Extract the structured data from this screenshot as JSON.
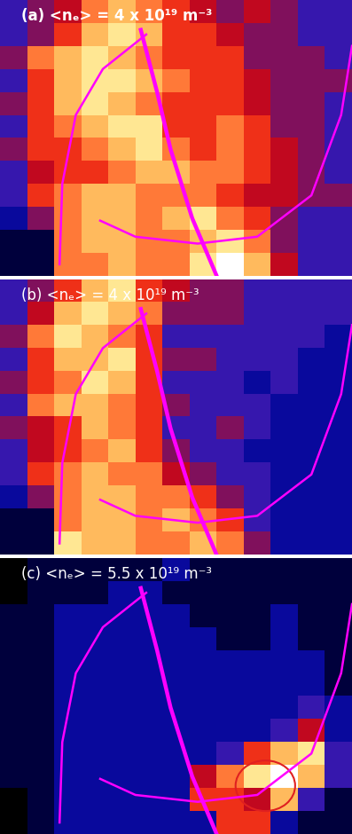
{
  "chart_data": [
    {
      "type": "heatmap",
      "title": "(a) <nₑ> = 4 x 10¹⁹ m⁻³",
      "tick_labels": false,
      "color_range": [
        0,
        10
      ],
      "cells": [
        [
          3,
          4,
          5,
          7,
          8,
          7,
          6,
          5,
          4,
          5,
          4,
          3,
          3
        ],
        [
          3,
          4,
          6,
          8,
          9,
          8,
          6,
          6,
          5,
          4,
          4,
          3,
          3
        ],
        [
          4,
          7,
          8,
          9,
          8,
          7,
          6,
          6,
          6,
          4,
          4,
          4,
          3
        ],
        [
          3,
          6,
          8,
          9,
          9,
          8,
          7,
          6,
          6,
          5,
          4,
          4,
          4
        ],
        [
          4,
          6,
          8,
          9,
          8,
          7,
          6,
          6,
          6,
          5,
          4,
          4,
          3
        ],
        [
          3,
          6,
          7,
          8,
          9,
          9,
          6,
          6,
          7,
          6,
          4,
          4,
          3
        ],
        [
          4,
          6,
          6,
          7,
          8,
          9,
          7,
          6,
          7,
          6,
          5,
          4,
          3
        ],
        [
          3,
          5,
          6,
          6,
          7,
          8,
          8,
          7,
          7,
          6,
          5,
          4,
          3
        ],
        [
          3,
          6,
          7,
          8,
          8,
          7,
          7,
          7,
          6,
          5,
          5,
          4,
          4
        ],
        [
          2,
          4,
          7,
          8,
          8,
          7,
          8,
          9,
          7,
          6,
          4,
          3,
          3
        ],
        [
          1,
          1,
          7,
          8,
          8,
          7,
          7,
          8,
          9,
          7,
          4,
          3,
          3
        ],
        [
          1,
          1,
          7,
          7,
          8,
          7,
          7,
          9,
          10,
          8,
          5,
          3,
          3
        ]
      ],
      "curves": [
        {
          "color": "#ff00ff",
          "x": [
            5.2,
            5.8,
            6.3,
            7.1,
            8.0
          ],
          "y": [
            1.3,
            4,
            6.5,
            9.5,
            12
          ]
        },
        {
          "color": "#ff00ff",
          "x": [
            5.4,
            3.8,
            2.8,
            2.3,
            2.2
          ],
          "y": [
            1.5,
            3,
            5,
            8,
            11.5
          ]
        },
        {
          "color": "#ff00ff",
          "x": [
            3.7,
            5,
            7.3,
            9.5,
            11.5,
            12.6,
            13
          ],
          "y": [
            9.6,
            10.3,
            10.6,
            10.3,
            8.5,
            5,
            2
          ]
        }
      ]
    },
    {
      "type": "heatmap",
      "title": "(b) <nₑ> = 4 x 10¹⁹ m⁻³",
      "tick_labels": false,
      "color_range": [
        0,
        10
      ],
      "cells": [
        [
          3,
          4,
          6,
          8,
          9,
          6,
          5,
          4,
          4,
          3,
          3,
          3,
          3
        ],
        [
          3,
          5,
          8,
          9,
          8,
          7,
          4,
          4,
          4,
          3,
          3,
          3,
          3
        ],
        [
          4,
          7,
          9,
          8,
          7,
          6,
          3,
          3,
          3,
          3,
          3,
          3,
          2
        ],
        [
          3,
          6,
          8,
          8,
          9,
          6,
          4,
          4,
          3,
          3,
          3,
          2,
          2
        ],
        [
          4,
          6,
          7,
          9,
          8,
          6,
          3,
          3,
          3,
          2,
          3,
          2,
          2
        ],
        [
          3,
          7,
          8,
          8,
          7,
          6,
          4,
          3,
          3,
          3,
          2,
          2,
          2
        ],
        [
          4,
          5,
          6,
          8,
          7,
          6,
          3,
          3,
          4,
          3,
          2,
          2,
          2
        ],
        [
          3,
          5,
          6,
          7,
          8,
          6,
          4,
          3,
          3,
          2,
          2,
          2,
          2
        ],
        [
          3,
          6,
          7,
          8,
          7,
          7,
          5,
          4,
          3,
          3,
          2,
          2,
          2
        ],
        [
          2,
          4,
          7,
          8,
          8,
          7,
          7,
          6,
          4,
          3,
          2,
          2,
          2
        ],
        [
          1,
          1,
          7,
          8,
          8,
          7,
          8,
          7,
          6,
          3,
          2,
          2,
          2
        ],
        [
          1,
          1,
          9,
          8,
          8,
          7,
          7,
          8,
          7,
          4,
          2,
          2,
          2
        ]
      ],
      "curves": [
        {
          "color": "#ff00ff",
          "x": [
            5.2,
            5.8,
            6.3,
            7.1,
            8.0
          ],
          "y": [
            1.3,
            4,
            6.5,
            9.5,
            12
          ]
        },
        {
          "color": "#ff00ff",
          "x": [
            5.4,
            3.8,
            2.8,
            2.3,
            2.2
          ],
          "y": [
            1.5,
            3,
            5,
            8,
            11.5
          ]
        },
        {
          "color": "#ff00ff",
          "x": [
            3.7,
            5,
            7.3,
            9.5,
            11.5,
            12.6,
            13
          ],
          "y": [
            9.6,
            10.3,
            10.6,
            10.3,
            8.5,
            5,
            2
          ]
        }
      ]
    },
    {
      "type": "heatmap",
      "title": "(c) <nₑ> = 5.5 x 10¹⁹ m⁻³",
      "tick_labels": false,
      "color_range": [
        0,
        10
      ],
      "cells": [
        [
          0,
          1,
          1,
          1,
          1,
          1,
          2,
          1,
          1,
          1,
          1,
          1,
          1
        ],
        [
          0,
          1,
          1,
          1,
          2,
          2,
          1,
          1,
          1,
          1,
          1,
          1,
          1
        ],
        [
          1,
          1,
          2,
          2,
          2,
          2,
          2,
          1,
          1,
          1,
          2,
          1,
          1
        ],
        [
          1,
          1,
          2,
          2,
          2,
          2,
          2,
          2,
          1,
          1,
          2,
          1,
          1
        ],
        [
          1,
          1,
          2,
          2,
          2,
          2,
          2,
          2,
          2,
          2,
          2,
          2,
          1
        ],
        [
          1,
          1,
          2,
          2,
          2,
          2,
          2,
          2,
          2,
          2,
          2,
          2,
          1
        ],
        [
          1,
          1,
          2,
          2,
          2,
          2,
          2,
          2,
          2,
          2,
          2,
          3,
          2
        ],
        [
          1,
          1,
          2,
          2,
          2,
          2,
          2,
          2,
          2,
          2,
          3,
          5,
          2
        ],
        [
          1,
          1,
          2,
          2,
          2,
          2,
          2,
          2,
          3,
          6,
          8,
          9,
          3
        ],
        [
          1,
          1,
          2,
          2,
          2,
          2,
          2,
          5,
          7,
          9,
          10,
          8,
          3
        ],
        [
          0,
          1,
          2,
          2,
          2,
          2,
          2,
          6,
          6,
          5,
          8,
          3,
          1
        ],
        [
          0,
          1,
          2,
          2,
          2,
          2,
          2,
          2,
          6,
          6,
          2,
          1,
          1
        ]
      ],
      "curves": [
        {
          "color": "#ff00ff",
          "x": [
            5.2,
            5.8,
            6.3,
            7.1,
            8.0
          ],
          "y": [
            1.3,
            4,
            6.5,
            9.5,
            12
          ]
        },
        {
          "color": "#ff00ff",
          "x": [
            5.4,
            3.8,
            2.8,
            2.3,
            2.2
          ],
          "y": [
            1.5,
            3,
            5,
            8,
            11.5
          ]
        },
        {
          "color": "#ff00ff",
          "x": [
            3.7,
            5,
            7.3,
            9.5,
            11.5,
            12.6,
            13
          ],
          "y": [
            9.6,
            10.3,
            10.6,
            10.3,
            8.5,
            5,
            2
          ]
        }
      ],
      "circle": {
        "x": 9.8,
        "y": 9.9,
        "r": 1.1,
        "color": "#e02020"
      }
    }
  ]
}
